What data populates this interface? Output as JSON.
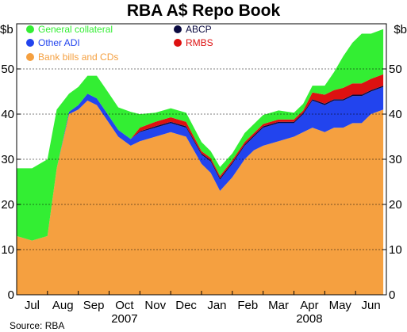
{
  "chart_data": {
    "type": "area",
    "title": "RBA A$ Repo Book",
    "ylabel_left": "$b",
    "ylabel_right": "$b",
    "ylim": [
      0,
      60
    ],
    "yticks": [
      0,
      10,
      20,
      30,
      40,
      50
    ],
    "months": [
      "Jul",
      "Aug",
      "Sep",
      "Oct",
      "Nov",
      "Dec",
      "Jan",
      "Feb",
      "Mar",
      "Apr",
      "May",
      "Jun"
    ],
    "years": [
      "2007",
      "2008"
    ],
    "source": "Source: RBA",
    "grid": true,
    "stacked": true,
    "legend": {
      "position": "top",
      "items": [
        {
          "label": "General collateral",
          "color": "#33ee33"
        },
        {
          "label": "Other ADI",
          "color": "#2244ee"
        },
        {
          "label": "Bank bills and CDs",
          "color": "#f5a040"
        },
        {
          "label": "ABCP",
          "color": "#0a0a40"
        },
        {
          "label": "RMBS",
          "color": "#dd1111"
        }
      ]
    },
    "series_order": [
      "Bank bills and CDs",
      "Other ADI",
      "ABCP",
      "RMBS",
      "General collateral"
    ],
    "colors": {
      "Bank bills and CDs": "#f5a040",
      "Other ADI": "#2244ee",
      "ABCP": "#0a0a40",
      "RMBS": "#dd1111",
      "General collateral": "#33ee33"
    },
    "x": [
      0,
      0.5,
      1,
      1.3,
      1.7,
      2,
      2.3,
      2.6,
      3,
      3.3,
      3.7,
      4,
      4.5,
      5,
      5.5,
      6,
      6.3,
      6.6,
      7,
      7.4,
      7.7,
      8,
      8.5,
      9,
      9.3,
      9.6,
      10,
      10.3,
      10.6,
      10.9,
      11.2,
      11.5,
      11.9
    ],
    "series": [
      {
        "name": "Bank bills and CDs",
        "values": [
          13,
          12,
          13,
          28,
          40,
          41,
          43,
          42,
          38,
          35,
          33,
          34,
          35,
          36,
          35,
          29,
          27,
          23,
          26,
          30,
          32,
          33,
          34,
          35,
          36,
          37,
          36,
          37,
          37,
          38,
          38,
          40,
          41
        ]
      },
      {
        "name": "Other ADI",
        "values": [
          0,
          0,
          0,
          0,
          0.5,
          1,
          1.5,
          1.5,
          1.5,
          1.5,
          1.5,
          2,
          2,
          2,
          2,
          2,
          2.5,
          2.5,
          3,
          3,
          3,
          4,
          4,
          3,
          4,
          6,
          6,
          6,
          6,
          6,
          6,
          5,
          5
        ]
      },
      {
        "name": "ABCP",
        "values": [
          0,
          0,
          0,
          0,
          0,
          0,
          0,
          0,
          0,
          0,
          0,
          0.2,
          0.3,
          0.3,
          0.3,
          0.3,
          0.3,
          0.3,
          0.3,
          0.3,
          0.3,
          0.3,
          0.3,
          0.3,
          0.3,
          0.3,
          0.3,
          0.3,
          0.3,
          0.3,
          0.3,
          0.3,
          0.3
        ]
      },
      {
        "name": "RMBS",
        "values": [
          0,
          0,
          0,
          0,
          0,
          0,
          0,
          0,
          0,
          0,
          0,
          0.8,
          1,
          1,
          1,
          0.5,
          0.5,
          0.5,
          0.5,
          0.5,
          0.5,
          0.5,
          0.5,
          0.5,
          0.5,
          1.5,
          2,
          2,
          2.5,
          2.5,
          2.5,
          2.5,
          2.5
        ]
      },
      {
        "name": "General collateral",
        "values": [
          15,
          16,
          17,
          13,
          4,
          4,
          4,
          5,
          5,
          5,
          6,
          3,
          2,
          2,
          2,
          2,
          1.5,
          2,
          1.5,
          2,
          2,
          2,
          2,
          1.5,
          1.5,
          1.5,
          2,
          4,
          7,
          9,
          11,
          10,
          10
        ]
      }
    ]
  }
}
